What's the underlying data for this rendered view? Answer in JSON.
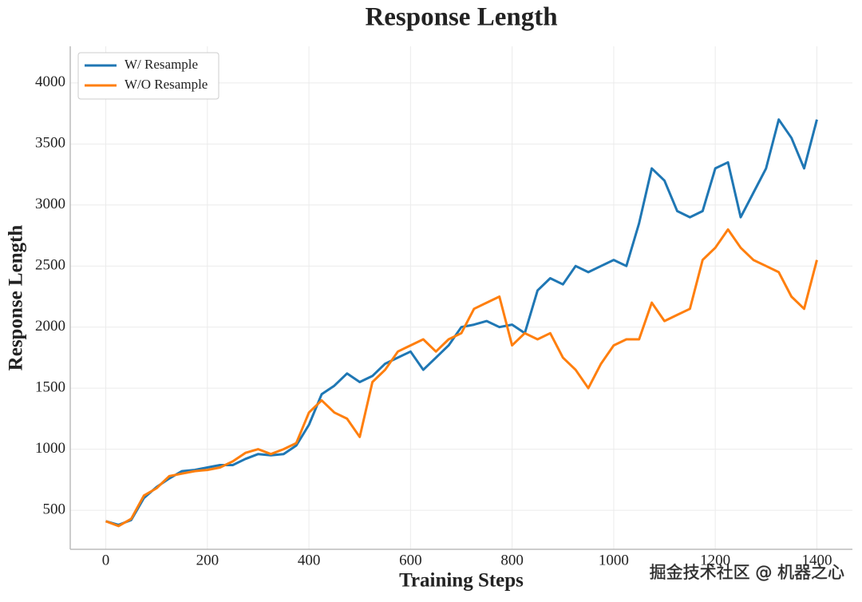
{
  "chart_data": {
    "type": "line",
    "title": "Response Length",
    "xlabel": "Training Steps",
    "ylabel": "Response Length",
    "x": [
      0,
      25,
      50,
      75,
      100,
      125,
      150,
      175,
      200,
      225,
      250,
      275,
      300,
      325,
      350,
      375,
      400,
      425,
      450,
      475,
      500,
      525,
      550,
      575,
      600,
      625,
      650,
      675,
      700,
      725,
      750,
      775,
      800,
      825,
      850,
      875,
      900,
      925,
      950,
      975,
      1000,
      1025,
      1050,
      1075,
      1100,
      1125,
      1150,
      1175,
      1200,
      1225,
      1250,
      1275,
      1300,
      1325,
      1350,
      1375,
      1400
    ],
    "series": [
      {
        "name": "W/ Resample",
        "color": "#1f77b4",
        "values": [
          410,
          380,
          420,
          600,
          690,
          760,
          820,
          830,
          850,
          870,
          870,
          920,
          960,
          950,
          960,
          1030,
          1200,
          1450,
          1520,
          1620,
          1550,
          1600,
          1700,
          1750,
          1800,
          1650,
          1750,
          1850,
          2000,
          2020,
          2050,
          2000,
          2020,
          1950,
          2300,
          2400,
          2350,
          2500,
          2450,
          2500,
          2550,
          2500,
          2850,
          3300,
          3200,
          2950,
          2900,
          2950,
          3300,
          3350,
          2900,
          3100,
          3300,
          3700,
          3550,
          3300,
          3700
        ]
      },
      {
        "name": "W/O Resample",
        "color": "#ff7f0e",
        "values": [
          410,
          370,
          430,
          620,
          680,
          780,
          800,
          820,
          830,
          850,
          900,
          970,
          1000,
          960,
          1000,
          1050,
          1300,
          1400,
          1300,
          1250,
          1100,
          1550,
          1650,
          1800,
          1850,
          1900,
          1800,
          1900,
          1950,
          2150,
          2200,
          2250,
          1850,
          1950,
          1900,
          1950,
          1750,
          1650,
          1500,
          1700,
          1850,
          1900,
          1900,
          2200,
          2050,
          2100,
          2150,
          2550,
          2650,
          2800,
          2650,
          2550,
          2500,
          2450,
          2250,
          2150,
          2550
        ]
      }
    ],
    "xlim": [
      -70,
      1470
    ],
    "ylim": [
      180,
      4300
    ],
    "xticks": [
      0,
      200,
      400,
      600,
      800,
      1000,
      1200,
      1400
    ],
    "yticks": [
      500,
      1000,
      1500,
      2000,
      2500,
      3000,
      3500,
      4000
    ],
    "grid": true,
    "legend": "upper-left"
  },
  "watermark": "掘金技术社区 @ 机器之心"
}
